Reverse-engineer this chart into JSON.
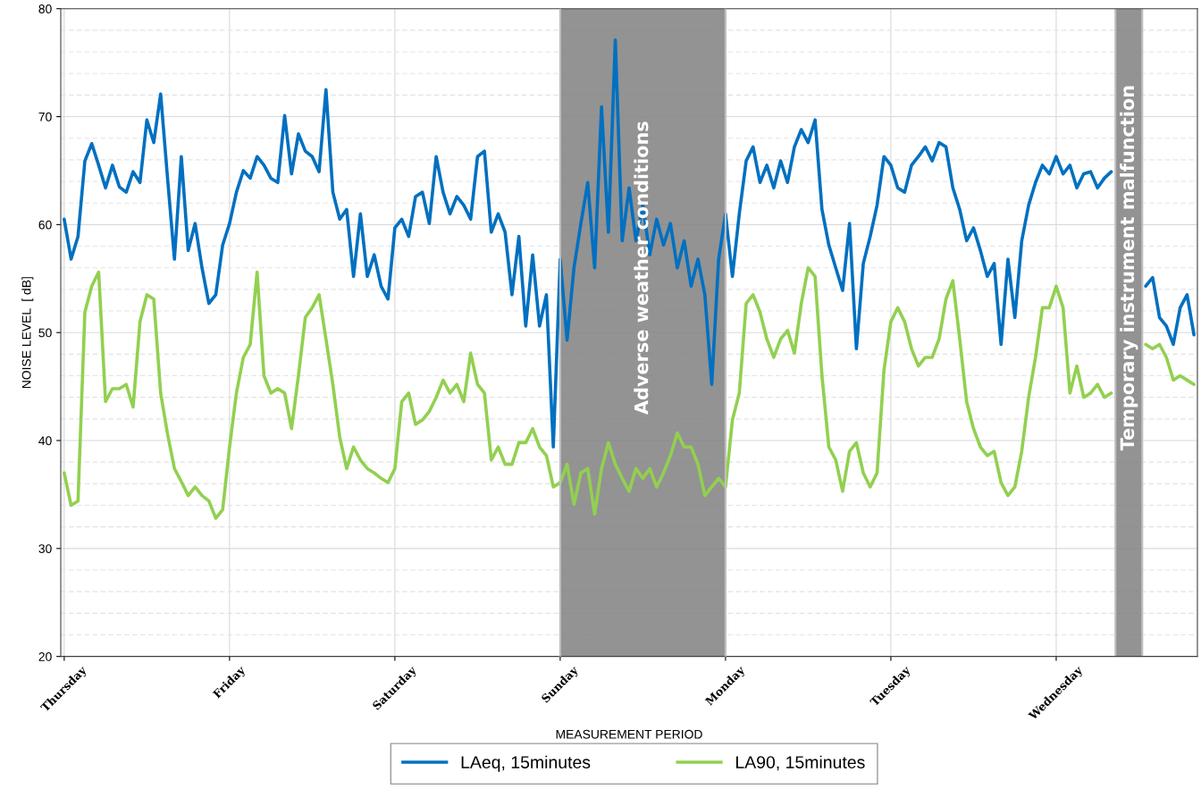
{
  "chart_data": {
    "type": "line",
    "xlabel": "MEASUREMENT PERIOD",
    "ylabel": "NOISE LEVEL  [ dB]",
    "categories": [
      "Thursday",
      null,
      null,
      null,
      null,
      null,
      null,
      null,
      null,
      null,
      null,
      null,
      null,
      null,
      null,
      null,
      null,
      null,
      null,
      null,
      null,
      null,
      null,
      null,
      "Friday",
      null,
      null,
      null,
      null,
      null,
      null,
      null,
      null,
      null,
      null,
      null,
      null,
      null,
      null,
      null,
      null,
      null,
      null,
      null,
      null,
      null,
      null,
      null,
      "Saturday",
      null,
      null,
      null,
      null,
      null,
      null,
      null,
      null,
      null,
      null,
      null,
      null,
      null,
      null,
      null,
      null,
      null,
      null,
      null,
      null,
      null,
      null,
      null,
      "Sunday",
      null,
      null,
      null,
      null,
      null,
      null,
      null,
      null,
      null,
      null,
      null,
      null,
      null,
      null,
      null,
      null,
      null,
      null,
      null,
      null,
      null,
      null,
      null,
      "Monday",
      null,
      null,
      null,
      null,
      null,
      null,
      null,
      null,
      null,
      null,
      null,
      null,
      null,
      null,
      null,
      null,
      null,
      null,
      null,
      null,
      null,
      null,
      null,
      "Tuesday",
      null,
      null,
      null,
      null,
      null,
      null,
      null,
      null,
      null,
      null,
      null,
      null,
      null,
      null,
      null,
      null,
      null,
      null,
      null,
      null,
      null,
      null,
      null,
      "Wednesday",
      null,
      null,
      null,
      null,
      null,
      null,
      null,
      null,
      null,
      null,
      null,
      null,
      null,
      null,
      null,
      null,
      null,
      null,
      null,
      null
    ],
    "ylim": [
      20,
      80
    ],
    "yticks": [
      20,
      {
        "value": 22,
        "label": null
      },
      {
        "value": 24,
        "label": null
      },
      {
        "value": 26,
        "label": null
      },
      {
        "value": 28,
        "label": null
      },
      30,
      {
        "value": 32,
        "label": null
      },
      {
        "value": 34,
        "label": null
      },
      {
        "value": 36,
        "label": null
      },
      {
        "value": 38,
        "label": null
      },
      40,
      {
        "value": 42,
        "label": null
      },
      {
        "value": 44,
        "label": null
      },
      {
        "value": 46,
        "label": null
      },
      {
        "value": 48,
        "label": null
      },
      50,
      {
        "value": 52,
        "label": null
      },
      {
        "value": 54,
        "label": null
      },
      {
        "value": 56,
        "label": null
      },
      {
        "value": 58,
        "label": null
      },
      60,
      {
        "value": 62,
        "label": null
      },
      {
        "value": 64,
        "label": null
      },
      {
        "value": 66,
        "label": null
      },
      {
        "value": 68,
        "label": null
      },
      70,
      {
        "value": 72,
        "label": null
      },
      {
        "value": 74,
        "label": null
      },
      {
        "value": 76,
        "label": null
      },
      {
        "value": 78,
        "label": null
      },
      80
    ],
    "grid": true,
    "legend": "bottom",
    "marker": "none",
    "line_style": "solid",
    "bands": [
      {
        "axis": "x",
        "from": "Sunday",
        "to": "Monday",
        "label": "Adverse weather conditions",
        "color": "#808080"
      }
    ],
    "annotations": [
      "Temporary instrument malfunction"
    ],
    "series": [
      {
        "name": "LAeq, 15minutes",
        "color": "#0070c0",
        "values": [
          60.5,
          56.8,
          58.9,
          65.9,
          67.5,
          65.5,
          63.4,
          65.5,
          63.5,
          63,
          64.9,
          63.9,
          69.7,
          67.6,
          72.1,
          64.3,
          56.8,
          66.3,
          57.6,
          60.1,
          56,
          52.7,
          53.5,
          58.1,
          60.1,
          63,
          65,
          64.3,
          66.3,
          65.5,
          64.3,
          63.9,
          70.1,
          64.7,
          68.4,
          66.8,
          66.3,
          64.9,
          72.5,
          63,
          60.5,
          61.4,
          55.2,
          61,
          55.2,
          57.2,
          54.3,
          53.1,
          59.7,
          60.5,
          58.9,
          62.6,
          63,
          60.1,
          66.3,
          63,
          61,
          62.6,
          61.8,
          60.5,
          66.3,
          66.8,
          59.3,
          61,
          59.3,
          53.5,
          58.9,
          50.6,
          57.2,
          50.6,
          53.5,
          39.4,
          56.8,
          49.3,
          56,
          60.1,
          63.9,
          56,
          70.9,
          59.3,
          77.1,
          58.5,
          63.4,
          58.5,
          61.8,
          57.2,
          60.5,
          58.1,
          60.1,
          56,
          58.5,
          54.3,
          56.8,
          53.5,
          45.2,
          56.8,
          61,
          55.2,
          61,
          65.9,
          67.2,
          63.9,
          65.5,
          63.4,
          65.9,
          63.9,
          67.2,
          68.8,
          67.6,
          69.7,
          61.4,
          58.1,
          56,
          53.9,
          60.1,
          48.5,
          56.4,
          58.9,
          61.8,
          66.3,
          65.5,
          63.4,
          63,
          65.5,
          66.3,
          67.2,
          65.9,
          67.6,
          67.2,
          63.4,
          61.4,
          58.5,
          59.7,
          57.6,
          55.2,
          56.4,
          48.9,
          56.8,
          51.4,
          58.5,
          61.8,
          63.9,
          65.5,
          64.7,
          66.3,
          64.7,
          65.5,
          63.4,
          64.7,
          64.9,
          63.4,
          64.3,
          64.9,
          null,
          null,
          null,
          null,
          54.3,
          55.1,
          51.4,
          50.6,
          48.9,
          52.3,
          53.5,
          49.8
        ]
      },
      {
        "name": "LA90, 15minutes",
        "color": "#92d050",
        "values": [
          37,
          34,
          34.4,
          51.9,
          54.3,
          55.6,
          43.6,
          44.8,
          44.8,
          45.2,
          43.1,
          51,
          53.5,
          53.1,
          44.4,
          40.6,
          37.4,
          36.2,
          34.9,
          35.7,
          34.9,
          34.4,
          32.8,
          33.6,
          39.4,
          44.4,
          47.7,
          48.9,
          55.6,
          46,
          44.4,
          44.8,
          44.4,
          41.1,
          46,
          51.4,
          52.3,
          53.5,
          49.4,
          45.2,
          40.3,
          37.4,
          39.4,
          38.2,
          37.4,
          37,
          36.5,
          36.1,
          37.4,
          43.6,
          44.4,
          41.5,
          41.9,
          42.7,
          44,
          45.6,
          44.4,
          45.2,
          43.6,
          48.1,
          45.2,
          44.4,
          38.2,
          39.4,
          37.8,
          37.8,
          39.8,
          39.8,
          41.1,
          39.4,
          38.6,
          35.7,
          36.1,
          37.8,
          34.1,
          37,
          37.4,
          33.2,
          37.4,
          39.8,
          37.8,
          36.5,
          35.3,
          37.4,
          36.5,
          37.4,
          35.7,
          37,
          38.6,
          40.7,
          39.4,
          39.4,
          37.8,
          34.9,
          35.7,
          36.5,
          35.7,
          41.9,
          44.4,
          52.7,
          53.5,
          51.9,
          49.4,
          47.7,
          49.4,
          50.2,
          48.1,
          52.7,
          56,
          55.2,
          46,
          39.4,
          38.2,
          35.3,
          39,
          39.8,
          37,
          35.7,
          37,
          46.5,
          51,
          52.3,
          51,
          48.5,
          46.9,
          47.7,
          47.7,
          49.4,
          53.1,
          54.8,
          49.4,
          43.6,
          41.1,
          39.4,
          38.6,
          39,
          36.1,
          34.9,
          35.7,
          39,
          44,
          47.7,
          52.3,
          52.3,
          54.3,
          52.3,
          44.4,
          46.9,
          44,
          44.4,
          45.2,
          44,
          44.4,
          null,
          null,
          null,
          null,
          48.9,
          48.5,
          48.9,
          47.7,
          45.6,
          46,
          45.6,
          45.2
        ]
      }
    ]
  }
}
